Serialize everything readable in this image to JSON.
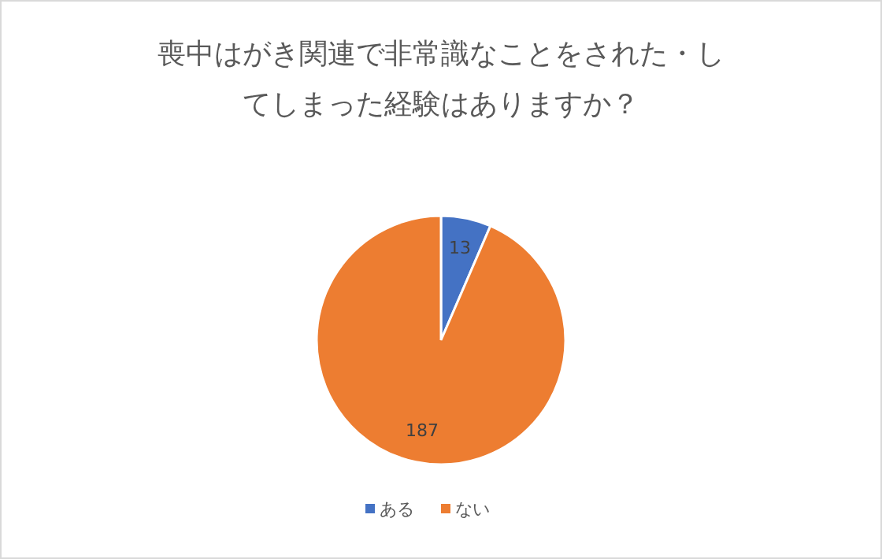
{
  "chart_data": {
    "type": "pie",
    "title": "喪中はがき関連で非常識なことをされた・してしまった経験はありますか？",
    "categories": [
      "ある",
      "ない"
    ],
    "values": [
      13,
      187
    ],
    "colors": [
      "#4472c4",
      "#ed7d31"
    ],
    "data_labels": true,
    "legend": "bottom"
  }
}
